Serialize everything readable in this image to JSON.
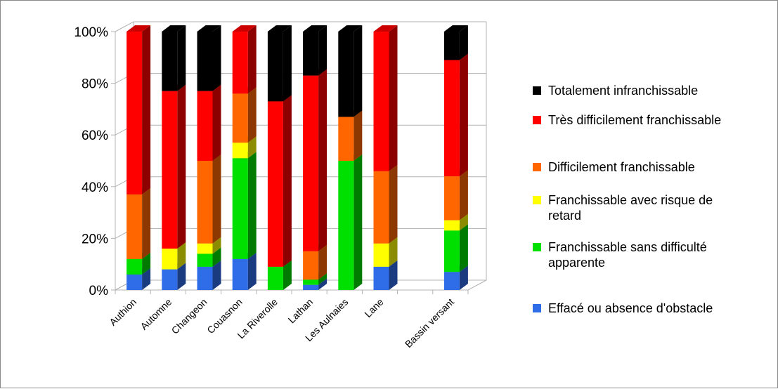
{
  "chart_data": {
    "type": "bar",
    "stacked": true,
    "percent": true,
    "three_d": true,
    "categories": [
      "Authion",
      "Automne",
      "Changeon",
      "Couasnon",
      "La Riverolle",
      "Lathan",
      "Les Aulnaies",
      "Lane",
      "",
      "Bassin versant"
    ],
    "yticks": [
      "0%",
      "20%",
      "40%",
      "60%",
      "80%",
      "100%"
    ],
    "ylim": [
      0,
      100
    ],
    "grid": true,
    "legend_position": "right",
    "series": [
      {
        "name": "Effacé ou absence d'obstacle",
        "color": "#2f6ce8",
        "values": [
          6,
          8,
          9,
          12,
          0,
          2,
          0,
          9,
          0,
          7
        ]
      },
      {
        "name": "Franchissable sans difficulté apparente",
        "color": "#00e000",
        "values": [
          6,
          0,
          5,
          39,
          9,
          2,
          50,
          0,
          0,
          16
        ]
      },
      {
        "name": "Franchissable avec risque de retard",
        "color": "#ffff00",
        "values": [
          0,
          8,
          4,
          6,
          0,
          0,
          0,
          9,
          0,
          4
        ]
      },
      {
        "name": "Difficilement franchissable",
        "color": "#ff6600",
        "values": [
          25,
          0,
          32,
          19,
          0,
          11,
          17,
          28,
          0,
          17
        ]
      },
      {
        "name": "Très difficilement franchissable",
        "color": "#ff0000",
        "values": [
          63,
          61,
          27,
          24,
          64,
          68,
          0,
          54,
          0,
          45
        ]
      },
      {
        "name": "Totalement infranchissable",
        "color": "#000000",
        "values": [
          0,
          23,
          23,
          0,
          27,
          17,
          33,
          0,
          0,
          11
        ]
      }
    ],
    "legend_order": [
      5,
      4,
      3,
      2,
      1,
      0
    ],
    "legend_labels": [
      [
        "Totalement infranchissable"
      ],
      [
        "Très difficilement franchissable"
      ],
      [
        "Difficilement franchissable"
      ],
      [
        "Franchissable avec risque de",
        "retard"
      ],
      [
        "Franchissable sans difficulté",
        "apparente"
      ],
      [
        "Effacé ou absence d'obstacle"
      ]
    ]
  }
}
